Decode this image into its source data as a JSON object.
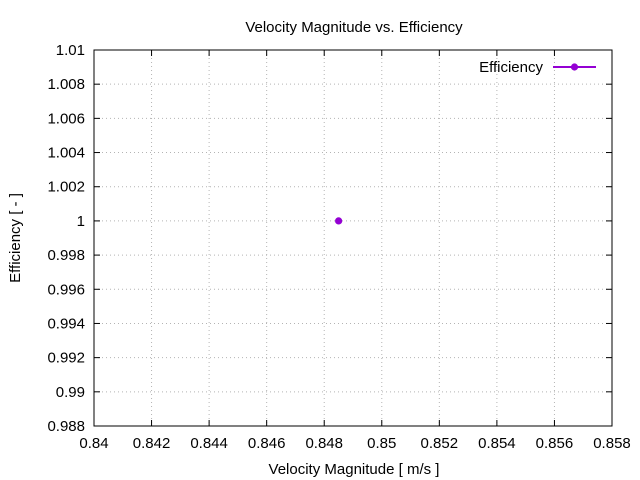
{
  "chart_data": {
    "type": "scatter",
    "title": "Velocity Magnitude  vs. Efficiency",
    "xlabel": "Velocity Magnitude [ m/s ]",
    "ylabel": "Efficiency [ - ]",
    "xlim": [
      0.84,
      0.858
    ],
    "ylim": [
      0.988,
      1.01
    ],
    "xticks": [
      "0.84",
      "0.842",
      "0.844",
      "0.846",
      "0.848",
      "0.85",
      "0.852",
      "0.854",
      "0.856",
      "0.858"
    ],
    "yticks": [
      "0.988",
      "0.99",
      "0.992",
      "0.994",
      "0.996",
      "0.998",
      "1",
      "1.002",
      "1.004",
      "1.006",
      "1.008",
      "1.01"
    ],
    "grid": true,
    "legend_position": "top-right",
    "series": [
      {
        "name": "Efficiency",
        "color": "#9400d3",
        "x": [
          0.8485
        ],
        "y": [
          1.0
        ]
      }
    ]
  }
}
